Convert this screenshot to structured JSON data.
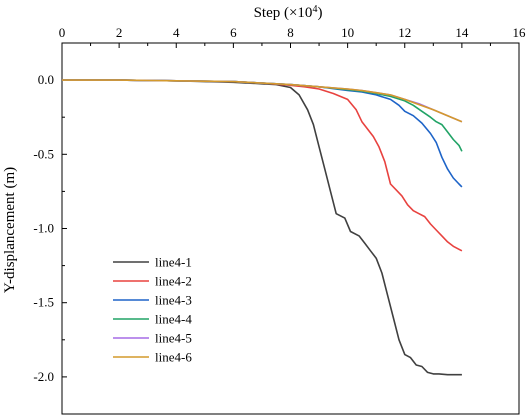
{
  "chart_data": {
    "type": "line",
    "xlabel": "Step (×10",
    "xlabel_exponent": "4",
    "xlabel_suffix": ")",
    "ylabel": "Y-displancement (m)",
    "xlim": [
      0,
      16
    ],
    "ylim": [
      -2.25,
      0.25
    ],
    "x_axis_position": "top",
    "x_ticks": [
      "0",
      "2",
      "4",
      "6",
      "8",
      "10",
      "12",
      "14",
      "16"
    ],
    "y_ticks": [
      "0.0",
      "-0.5",
      "-1.0",
      "-1.5",
      "-2.0"
    ],
    "grid": false,
    "legend_position": "bottom-left",
    "series": [
      {
        "name": "line4-1",
        "color": "#404040",
        "x": [
          0,
          2,
          4,
          5,
          6,
          7,
          7.5,
          8.0,
          8.3,
          8.6,
          8.8,
          9.0,
          9.2,
          9.4,
          9.6,
          9.9,
          10.1,
          10.4,
          10.6,
          10.8,
          11.0,
          11.2,
          11.4,
          11.6,
          11.8,
          12.0,
          12.2,
          12.4,
          12.6,
          12.8,
          13.0,
          13.2,
          13.5,
          13.8,
          14.0
        ],
        "y": [
          0,
          0,
          -0.005,
          -0.01,
          -0.015,
          -0.025,
          -0.03,
          -0.05,
          -0.1,
          -0.2,
          -0.3,
          -0.45,
          -0.6,
          -0.75,
          -0.9,
          -0.93,
          -1.02,
          -1.05,
          -1.1,
          -1.15,
          -1.2,
          -1.3,
          -1.45,
          -1.6,
          -1.75,
          -1.85,
          -1.87,
          -1.92,
          -1.93,
          -1.97,
          -1.98,
          -1.98,
          -1.985,
          -1.985,
          -1.985
        ]
      },
      {
        "name": "line4-2",
        "color": "#e8423f",
        "x": [
          0,
          2,
          4,
          6,
          7,
          8,
          8.5,
          9,
          9.5,
          10.0,
          10.3,
          10.5,
          10.7,
          10.9,
          11.1,
          11.3,
          11.5,
          11.7,
          11.9,
          12.1,
          12.3,
          12.5,
          12.7,
          12.9,
          13.1,
          13.3,
          13.5,
          13.7,
          13.9,
          14.0
        ],
        "y": [
          0,
          0,
          -0.005,
          -0.01,
          -0.02,
          -0.035,
          -0.045,
          -0.06,
          -0.09,
          -0.13,
          -0.2,
          -0.28,
          -0.33,
          -0.38,
          -0.45,
          -0.55,
          -0.7,
          -0.74,
          -0.78,
          -0.84,
          -0.88,
          -0.9,
          -0.92,
          -0.97,
          -1.01,
          -1.05,
          -1.09,
          -1.12,
          -1.14,
          -1.15
        ]
      },
      {
        "name": "line4-3",
        "color": "#1e64c8",
        "x": [
          0,
          2,
          4,
          6,
          7,
          8,
          9,
          10,
          10.5,
          11,
          11.5,
          11.8,
          12.0,
          12.3,
          12.6,
          12.9,
          13.1,
          13.3,
          13.5,
          13.7,
          13.9,
          14.0
        ],
        "y": [
          0,
          0,
          -0.005,
          -0.01,
          -0.02,
          -0.03,
          -0.045,
          -0.07,
          -0.08,
          -0.1,
          -0.13,
          -0.17,
          -0.21,
          -0.24,
          -0.29,
          -0.36,
          -0.42,
          -0.52,
          -0.6,
          -0.66,
          -0.7,
          -0.72
        ]
      },
      {
        "name": "line4-4",
        "color": "#21a366",
        "x": [
          0,
          2,
          4,
          6,
          7,
          8,
          9,
          10,
          10.5,
          11,
          11.5,
          12.0,
          12.3,
          12.6,
          12.9,
          13.1,
          13.3,
          13.5,
          13.7,
          13.9,
          14.0
        ],
        "y": [
          0,
          0,
          -0.005,
          -0.01,
          -0.02,
          -0.03,
          -0.045,
          -0.065,
          -0.075,
          -0.09,
          -0.11,
          -0.14,
          -0.17,
          -0.21,
          -0.25,
          -0.28,
          -0.3,
          -0.35,
          -0.4,
          -0.44,
          -0.48
        ]
      },
      {
        "name": "line4-5",
        "color": "#a56be6",
        "x": [
          0,
          2,
          4,
          6,
          7,
          8,
          9,
          10,
          10.5,
          11,
          11.5,
          12.0,
          12.5,
          13.0,
          13.5,
          14.0
        ],
        "y": [
          0,
          0,
          -0.005,
          -0.01,
          -0.02,
          -0.03,
          -0.045,
          -0.06,
          -0.07,
          -0.085,
          -0.1,
          -0.13,
          -0.16,
          -0.2,
          -0.24,
          -0.28
        ]
      },
      {
        "name": "line4-6",
        "color": "#d49a2c",
        "x": [
          0,
          2,
          4,
          6,
          7,
          8,
          9,
          10,
          10.5,
          11,
          11.5,
          12.0,
          12.5,
          13.0,
          13.5,
          14.0
        ],
        "y": [
          0,
          0,
          -0.005,
          -0.01,
          -0.02,
          -0.03,
          -0.045,
          -0.06,
          -0.07,
          -0.085,
          -0.1,
          -0.13,
          -0.165,
          -0.2,
          -0.24,
          -0.28
        ]
      }
    ]
  }
}
